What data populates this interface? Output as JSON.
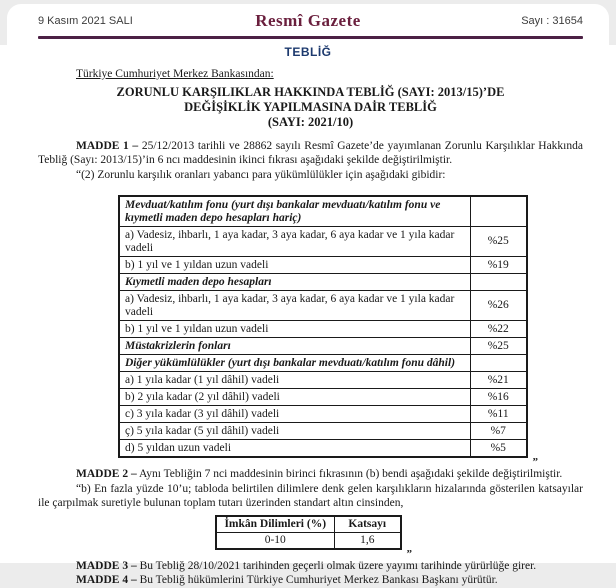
{
  "header": {
    "date": "9 Kasım 2021 SALI",
    "masthead": "Resmî Gazete",
    "issue": "Sayı : 31654"
  },
  "section_label": "TEBLİĞ",
  "from_line": "Türkiye Cumhuriyet Merkez Bankasından:",
  "title_lines": [
    "ZORUNLU KARŞILIKLAR HAKKINDA TEBLİĞ (SAYI: 2013/15)’DE",
    "DEĞİŞİKLİK YAPILMASINA DAİR TEBLİĞ",
    "(SAYI: 2021/10)"
  ],
  "articles": {
    "madde1_label": "MADDE 1 –",
    "madde1_text": "25/12/2013 tarihli ve 28862 sayılı Resmî Gazete’de yayımlanan Zorunlu Karşılıklar Hakkında Tebliğ (Sayı: 2013/15)’in 6 ncı maddesinin ikinci fıkrası aşağıdaki şekilde değiştirilmiştir.",
    "madde1_quote": "“(2) Zorunlu karşılık oranları yabancı para yükümlülükler için aşağıdaki gibidir:",
    "madde2_label": "MADDE 2 –",
    "madde2_text": "Aynı Tebliğin 7 nci maddesinin birinci fıkrasının (b) bendi aşağıdaki şekilde değiştirilmiştir.",
    "madde2_quote": "“b) En fazla yüzde 10’u; tabloda belirtilen dilimlere denk gelen karşılıkların hizalarında gösterilen katsayılar ile çarpılmak suretiyle bulunan toplam tutarı üzerinden standart altın cinsinden,",
    "madde3_label": "MADDE 3 –",
    "madde3_text": "Bu Tebliğ 28/10/2021 tarihinden geçerli olmak üzere yayımı tarihinde yürürlüğe girer.",
    "madde4_label": "MADDE 4 –",
    "madde4_text": "Bu Tebliğ hükümlerini Türkiye Cumhuriyet Merkez Bankası Başkanı yürütür."
  },
  "rates_table": {
    "close_quote": "”",
    "rows": [
      {
        "label": "Mevduat/katılım fonu (yurt dışı bankalar mevduatı/katılım fonu ve kıymetli maden depo hesapları hariç)",
        "value": "",
        "group": true
      },
      {
        "label": "a) Vadesiz, ihbarlı, 1 aya kadar, 3 aya kadar, 6 aya kadar ve 1 yıla kadar vadeli",
        "value": "%25",
        "group": false
      },
      {
        "label": "b) 1 yıl ve 1 yıldan uzun vadeli",
        "value": "%19",
        "group": false
      },
      {
        "label": "Kıymetli maden depo hesapları",
        "value": "",
        "group": true
      },
      {
        "label": "a) Vadesiz, ihbarlı, 1 aya kadar, 3 aya kadar, 6 aya kadar ve 1 yıla kadar vadeli",
        "value": "%26",
        "group": false
      },
      {
        "label": "b) 1 yıl ve 1 yıldan uzun vadeli",
        "value": "%22",
        "group": false
      },
      {
        "label": "Müstakrizlerin fonları",
        "value": "%25",
        "group": true
      },
      {
        "label": "Diğer yükümlülükler (yurt dışı bankalar mevduatı/katılım fonu dâhil)",
        "value": "",
        "group": true
      },
      {
        "label": "a) 1 yıla kadar (1 yıl dâhil) vadeli",
        "value": "%21",
        "group": false
      },
      {
        "label": "b) 2 yıla kadar (2 yıl dâhil) vadeli",
        "value": "%16",
        "group": false
      },
      {
        "label": "c) 3 yıla kadar (3 yıl dâhil) vadeli",
        "value": "%11",
        "group": false
      },
      {
        "label": "ç) 5 yıla kadar (5 yıl dâhil) vadeli",
        "value": "%7",
        "group": false
      },
      {
        "label": "d) 5 yıldan uzun vadeli",
        "value": "%5",
        "group": false
      }
    ]
  },
  "coefficient_table": {
    "close_quote": "”",
    "headers": [
      "İmkân Dilimleri (%)",
      "Katsayı"
    ],
    "rows": [
      [
        "0-10",
        "1,6"
      ]
    ]
  },
  "colors": {
    "masthead": "#6a1f3d",
    "rule": "#4c2145",
    "section": "#1d3a6e",
    "ink": "#191919"
  }
}
